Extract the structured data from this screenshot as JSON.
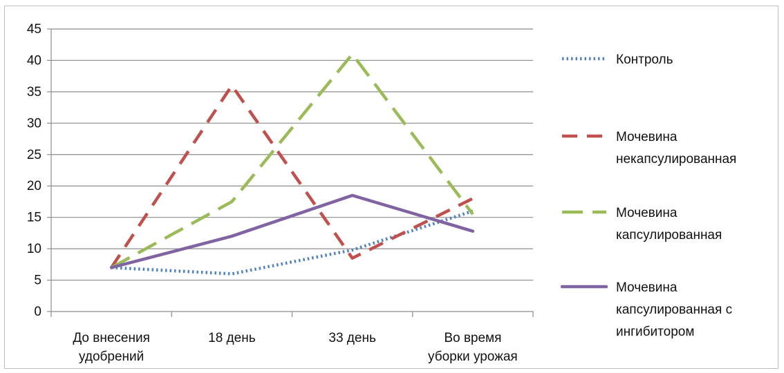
{
  "chart_data": {
    "type": "line",
    "categories": [
      [
        "До внесения",
        "удобрений"
      ],
      [
        "18 день"
      ],
      [
        "33 день"
      ],
      [
        "Во время",
        "уборки урожая"
      ]
    ],
    "ylim": [
      0,
      45
    ],
    "yticks": [
      0,
      5,
      10,
      15,
      20,
      25,
      30,
      35,
      40,
      45
    ],
    "grid": true,
    "legend_position": "right",
    "series": [
      {
        "name": [
          "Контроль"
        ],
        "values": [
          7,
          6,
          9.8,
          16
        ],
        "color": "#4f81bd",
        "style": "dotted"
      },
      {
        "name": [
          "Мочевина",
          "некапсулированная"
        ],
        "values": [
          7,
          36,
          8.5,
          18
        ],
        "color": "#c0504d",
        "style": "dashed"
      },
      {
        "name": [
          "Мочевина",
          "капсулированная"
        ],
        "values": [
          7,
          17.5,
          41,
          15.5
        ],
        "color": "#9bbb59",
        "style": "long-dashed"
      },
      {
        "name": [
          "Мочевина",
          "капсулированная с",
          "ингибитором"
        ],
        "values": [
          7,
          12,
          18.5,
          12.8
        ],
        "color": "#8064a2",
        "style": "solid"
      }
    ]
  }
}
